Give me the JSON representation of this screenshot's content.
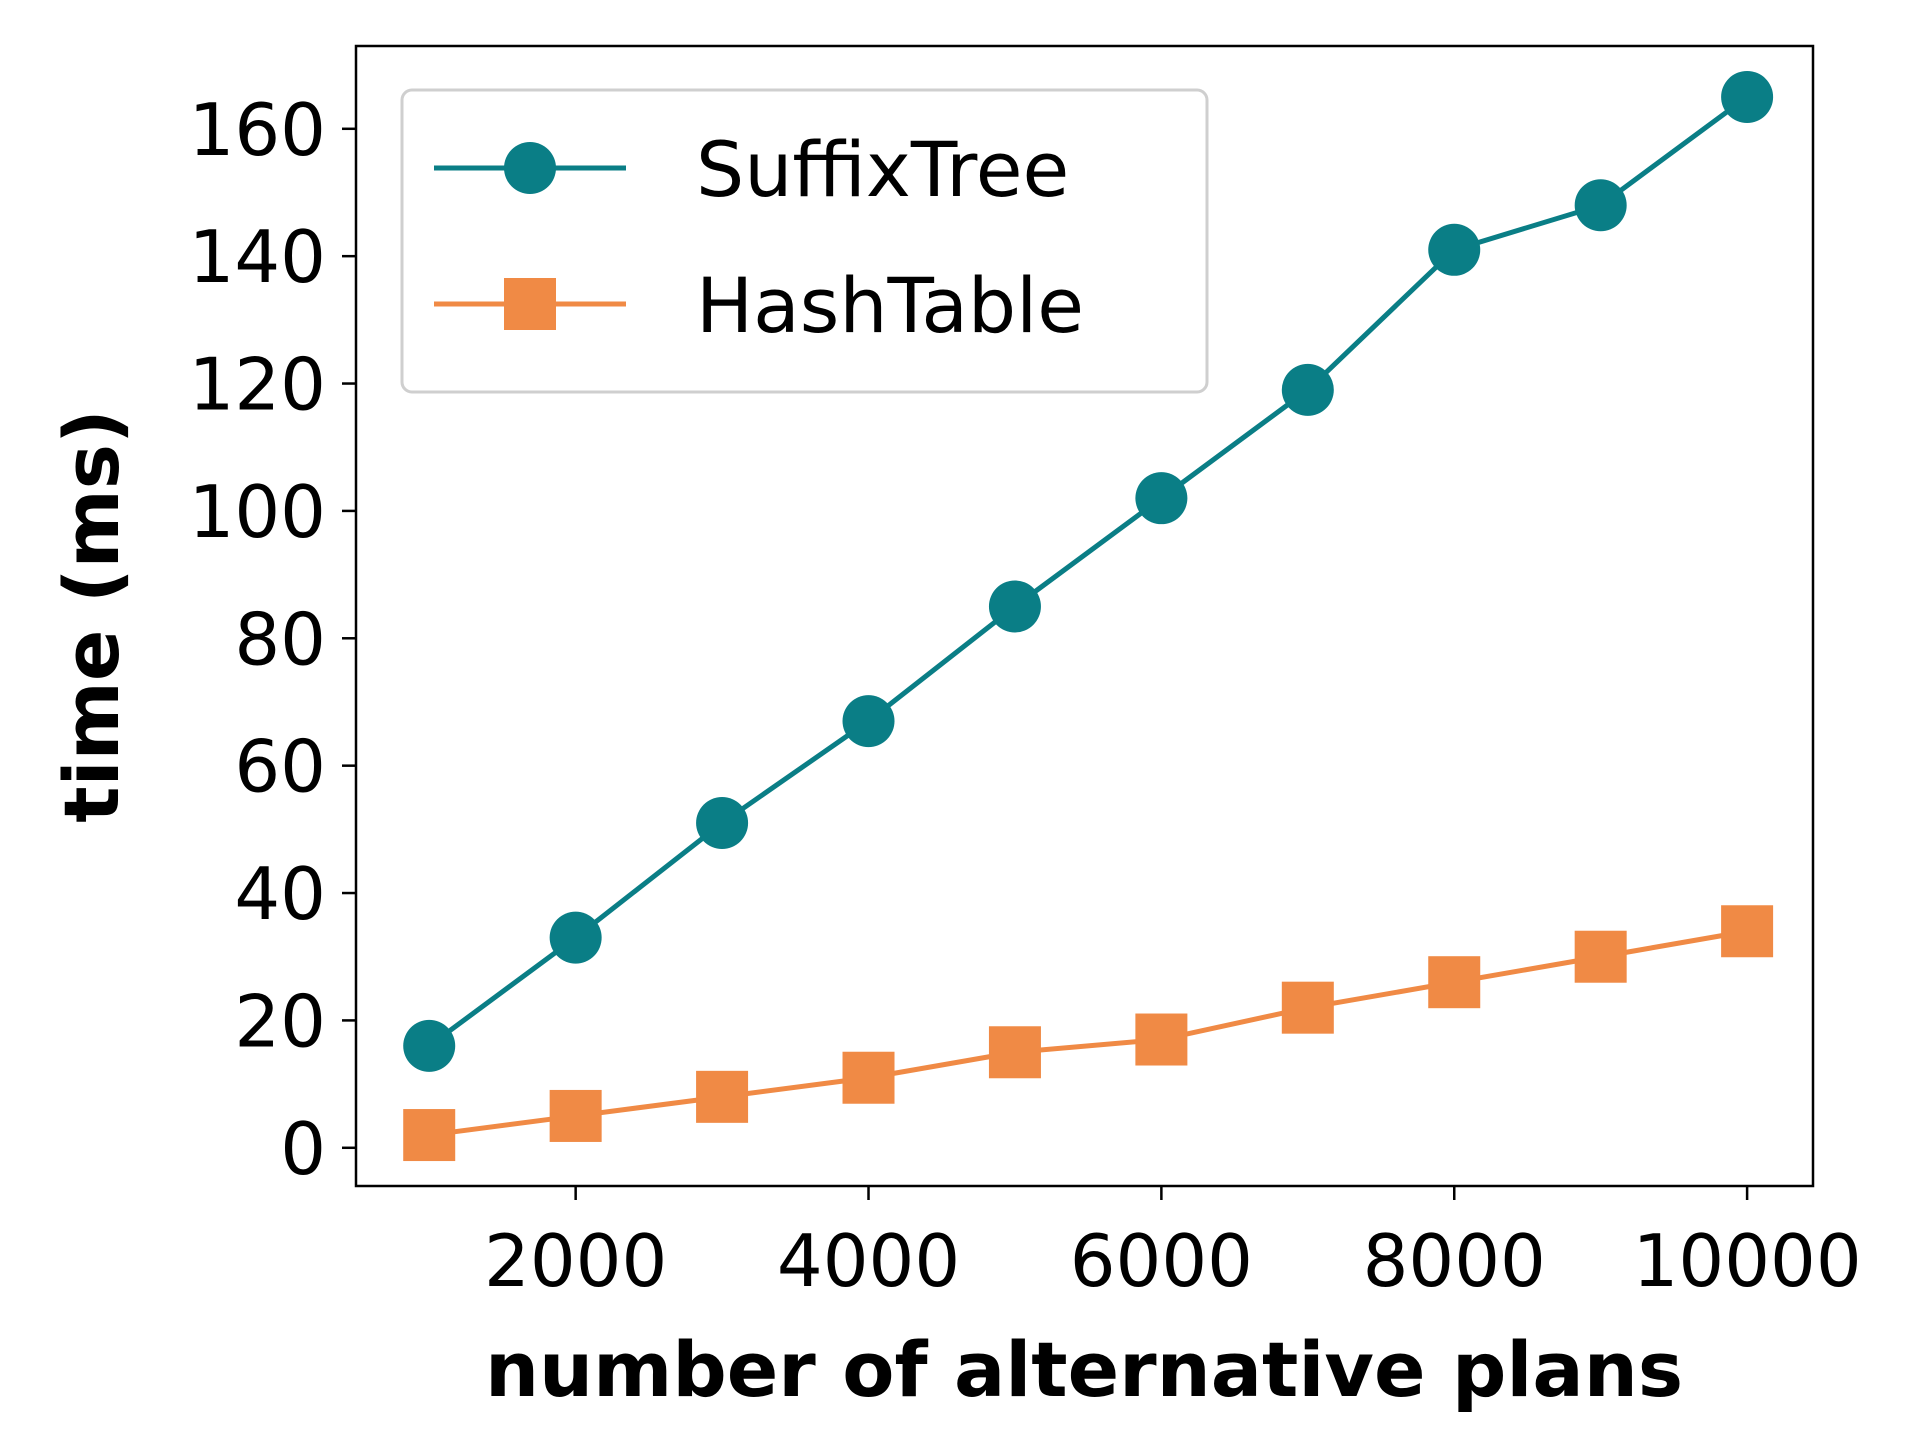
{
  "chart_data": {
    "type": "line",
    "title": "",
    "xlabel": "number of alternative plans",
    "ylabel": "time (ms)",
    "x": [
      1000,
      2000,
      3000,
      4000,
      5000,
      6000,
      7000,
      8000,
      9000,
      10000
    ],
    "xlim": [
      500,
      10450
    ],
    "ylim": [
      -6,
      173
    ],
    "xticks": [
      2000,
      4000,
      6000,
      8000,
      10000
    ],
    "yticks": [
      0,
      20,
      40,
      60,
      80,
      100,
      120,
      140,
      160
    ],
    "grid": false,
    "legend_position": "top-left",
    "series": [
      {
        "name": "SuffixTree",
        "marker": "circle",
        "color": "#0a7e86",
        "values": [
          16,
          33,
          51,
          67,
          85,
          102,
          119,
          141,
          148,
          165
        ]
      },
      {
        "name": "HashTable",
        "marker": "square",
        "color": "#f08a45",
        "values": [
          2,
          5,
          8,
          11,
          15,
          17,
          22,
          26,
          30,
          34
        ]
      }
    ]
  }
}
